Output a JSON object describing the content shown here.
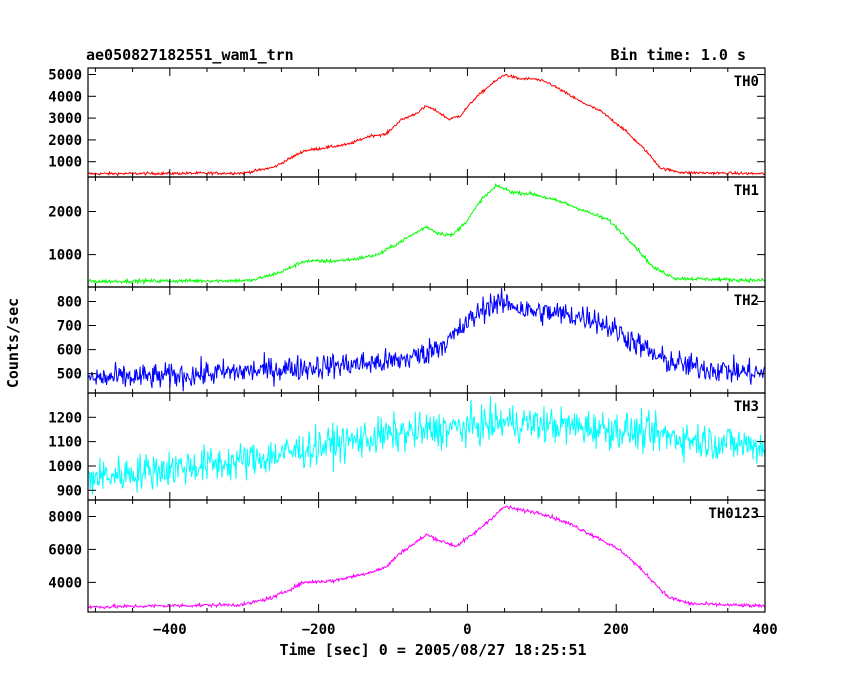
{
  "header": {
    "title": "ae050827182551_wam1_trn",
    "bin_time": "Bin time: 1.0 s"
  },
  "chart_data": {
    "type": "line",
    "title": "ae050827182551_wam1_trn",
    "xlabel": "Time [sec] 0 = 2005/08/27 18:25:51",
    "ylabel": "Counts/sec",
    "xlim": [
      -510,
      400
    ],
    "xticks": [
      -400,
      -200,
      0,
      200,
      400
    ],
    "x_tick_labels": [
      "−400",
      "−200",
      "0",
      "200",
      "400"
    ],
    "legend": "none",
    "grid": false,
    "panels": [
      {
        "name": "TH0",
        "color": "#ff0000",
        "ylim": [
          300,
          5300
        ],
        "yticks": [
          1000,
          2000,
          3000,
          4000,
          5000
        ],
        "noise": 45,
        "profile": [
          [
            -510,
            450
          ],
          [
            -300,
            480
          ],
          [
            -260,
            750
          ],
          [
            -220,
            1500
          ],
          [
            -190,
            1650
          ],
          [
            -160,
            1800
          ],
          [
            -130,
            2200
          ],
          [
            -110,
            2250
          ],
          [
            -90,
            2900
          ],
          [
            -70,
            3200
          ],
          [
            -55,
            3550
          ],
          [
            -40,
            3300
          ],
          [
            -25,
            2950
          ],
          [
            -10,
            3100
          ],
          [
            10,
            3900
          ],
          [
            30,
            4500
          ],
          [
            50,
            5000
          ],
          [
            70,
            4800
          ],
          [
            90,
            4800
          ],
          [
            110,
            4600
          ],
          [
            150,
            3800
          ],
          [
            180,
            3300
          ],
          [
            210,
            2500
          ],
          [
            240,
            1500
          ],
          [
            260,
            700
          ],
          [
            290,
            500
          ],
          [
            400,
            450
          ]
        ]
      },
      {
        "name": "TH1",
        "color": "#00ff00",
        "ylim": [
          250,
          2800
        ],
        "yticks": [
          1000,
          2000
        ],
        "noise": 30,
        "profile": [
          [
            -510,
            380
          ],
          [
            -290,
            400
          ],
          [
            -250,
            600
          ],
          [
            -220,
            850
          ],
          [
            -180,
            850
          ],
          [
            -150,
            900
          ],
          [
            -120,
            1000
          ],
          [
            -90,
            1300
          ],
          [
            -70,
            1500
          ],
          [
            -55,
            1650
          ],
          [
            -40,
            1500
          ],
          [
            -20,
            1450
          ],
          [
            0,
            1800
          ],
          [
            20,
            2300
          ],
          [
            40,
            2600
          ],
          [
            60,
            2450
          ],
          [
            90,
            2400
          ],
          [
            130,
            2200
          ],
          [
            160,
            2000
          ],
          [
            190,
            1800
          ],
          [
            220,
            1300
          ],
          [
            250,
            700
          ],
          [
            280,
            450
          ],
          [
            400,
            400
          ]
        ]
      },
      {
        "name": "TH2",
        "color": "#0000ff",
        "ylim": [
          420,
          860
        ],
        "yticks": [
          500,
          600,
          700,
          800
        ],
        "noise": 38,
        "profile": [
          [
            -510,
            480
          ],
          [
            -400,
            490
          ],
          [
            -300,
            510
          ],
          [
            -200,
            530
          ],
          [
            -100,
            550
          ],
          [
            -60,
            580
          ],
          [
            -20,
            650
          ],
          [
            10,
            740
          ],
          [
            30,
            790
          ],
          [
            60,
            790
          ],
          [
            80,
            760
          ],
          [
            120,
            750
          ],
          [
            170,
            730
          ],
          [
            210,
            660
          ],
          [
            260,
            560
          ],
          [
            300,
            530
          ],
          [
            360,
            510
          ],
          [
            400,
            500
          ]
        ]
      },
      {
        "name": "TH3",
        "color": "#00ffff",
        "ylim": [
          860,
          1300
        ],
        "yticks": [
          900,
          1000,
          1100,
          1200
        ],
        "noise": 55,
        "profile": [
          [
            -510,
            950
          ],
          [
            -400,
            990
          ],
          [
            -300,
            1020
          ],
          [
            -200,
            1080
          ],
          [
            -100,
            1130
          ],
          [
            0,
            1160
          ],
          [
            50,
            1180
          ],
          [
            100,
            1170
          ],
          [
            200,
            1150
          ],
          [
            300,
            1110
          ],
          [
            400,
            1080
          ]
        ]
      },
      {
        "name": "TH0123",
        "color": "#ff00ff",
        "ylim": [
          2200,
          9000
        ],
        "yticks": [
          4000,
          6000,
          8000
        ],
        "noise": 80,
        "profile": [
          [
            -510,
            2500
          ],
          [
            -300,
            2650
          ],
          [
            -260,
            3100
          ],
          [
            -220,
            4000
          ],
          [
            -180,
            4100
          ],
          [
            -140,
            4500
          ],
          [
            -110,
            4900
          ],
          [
            -90,
            5800
          ],
          [
            -70,
            6400
          ],
          [
            -55,
            6900
          ],
          [
            -35,
            6500
          ],
          [
            -15,
            6200
          ],
          [
            10,
            7000
          ],
          [
            30,
            7800
          ],
          [
            50,
            8600
          ],
          [
            70,
            8400
          ],
          [
            100,
            8200
          ],
          [
            140,
            7500
          ],
          [
            180,
            6600
          ],
          [
            210,
            5800
          ],
          [
            240,
            4500
          ],
          [
            270,
            3100
          ],
          [
            300,
            2700
          ],
          [
            400,
            2550
          ]
        ]
      }
    ]
  }
}
